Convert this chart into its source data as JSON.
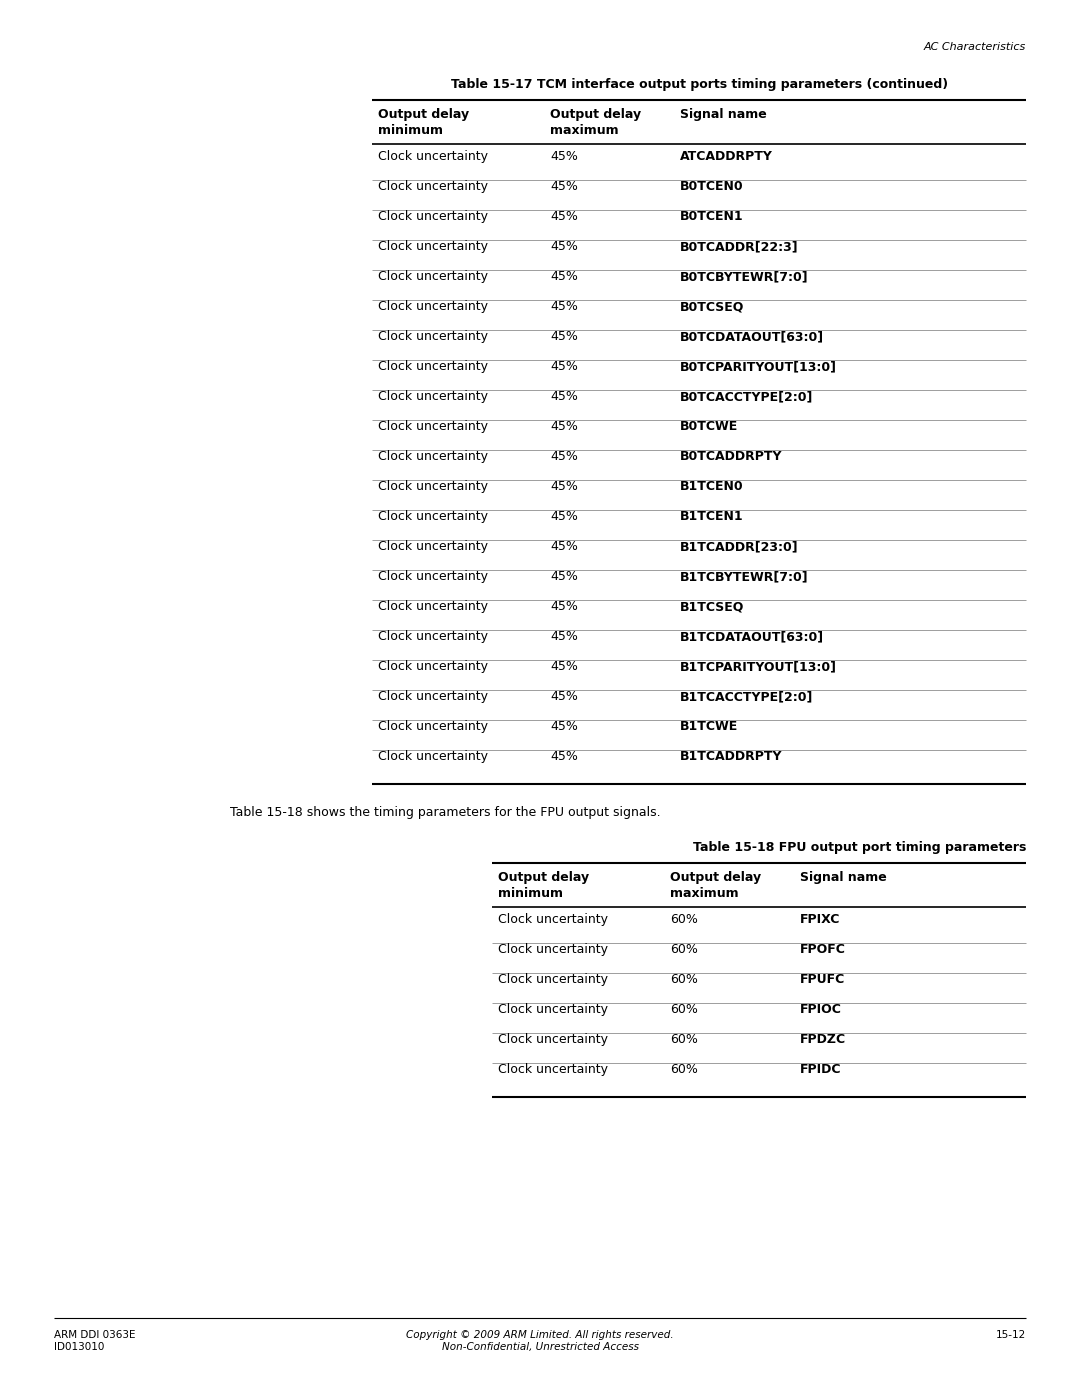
{
  "page_header": "AC Characteristics",
  "table1_title": "Table 15-17 TCM interface output ports timing parameters (continued)",
  "table1_rows": [
    [
      "Clock uncertainty",
      "45%",
      "ATCADDRPTY"
    ],
    [
      "Clock uncertainty",
      "45%",
      "B0TCEN0"
    ],
    [
      "Clock uncertainty",
      "45%",
      "B0TCEN1"
    ],
    [
      "Clock uncertainty",
      "45%",
      "B0TCADDR[22:3]"
    ],
    [
      "Clock uncertainty",
      "45%",
      "B0TCBYTEWR[7:0]"
    ],
    [
      "Clock uncertainty",
      "45%",
      "B0TCSEQ"
    ],
    [
      "Clock uncertainty",
      "45%",
      "B0TCDATAOUT[63:0]"
    ],
    [
      "Clock uncertainty",
      "45%",
      "B0TCPARITYOUT[13:0]"
    ],
    [
      "Clock uncertainty",
      "45%",
      "B0TCACCTYPE[2:0]"
    ],
    [
      "Clock uncertainty",
      "45%",
      "B0TCWE"
    ],
    [
      "Clock uncertainty",
      "45%",
      "B0TCADDRPTY"
    ],
    [
      "Clock uncertainty",
      "45%",
      "B1TCEN0"
    ],
    [
      "Clock uncertainty",
      "45%",
      "B1TCEN1"
    ],
    [
      "Clock uncertainty",
      "45%",
      "B1TCADDR[23:0]"
    ],
    [
      "Clock uncertainty",
      "45%",
      "B1TCBYTEWR[7:0]"
    ],
    [
      "Clock uncertainty",
      "45%",
      "B1TCSEQ"
    ],
    [
      "Clock uncertainty",
      "45%",
      "B1TCDATAOUT[63:0]"
    ],
    [
      "Clock uncertainty",
      "45%",
      "B1TCPARITYOUT[13:0]"
    ],
    [
      "Clock uncertainty",
      "45%",
      "B1TCACCTYPE[2:0]"
    ],
    [
      "Clock uncertainty",
      "45%",
      "B1TCWE"
    ],
    [
      "Clock uncertainty",
      "45%",
      "B1TCADDRPTY"
    ]
  ],
  "middle_text": "Table 15-18 shows the timing parameters for the FPU output signals.",
  "table2_title": "Table 15-18 FPU output port timing parameters",
  "table2_rows": [
    [
      "Clock uncertainty",
      "60%",
      "FPIXC"
    ],
    [
      "Clock uncertainty",
      "60%",
      "FPOFC"
    ],
    [
      "Clock uncertainty",
      "60%",
      "FPUFC"
    ],
    [
      "Clock uncertainty",
      "60%",
      "FPIOC"
    ],
    [
      "Clock uncertainty",
      "60%",
      "FPDZC"
    ],
    [
      "Clock uncertainty",
      "60%",
      "FPIDC"
    ]
  ],
  "footer_left": "ARM DDI 0363E\nID013010",
  "footer_center": "Copyright © 2009 ARM Limited. All rights reserved.\nNon-Confidential, Unrestricted Access",
  "footer_right": "15-12",
  "bg_color": "#ffffff"
}
